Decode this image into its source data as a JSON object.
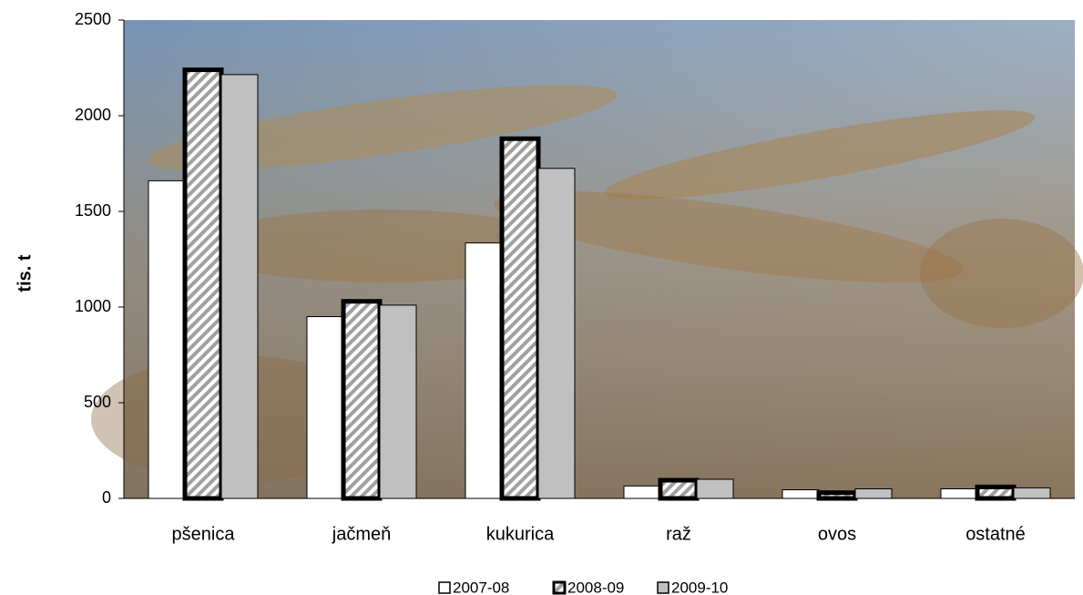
{
  "chart_data": {
    "type": "bar",
    "y_label": "tis. t",
    "categories": [
      "pšenica",
      "jačmeň",
      "kukurica",
      "raž",
      "ovos",
      "ostatné"
    ],
    "series": [
      {
        "name": "2007-08",
        "color": "#ffffff",
        "values": [
          1660,
          950,
          1335,
          65,
          45,
          50
        ]
      },
      {
        "name": "2008-09",
        "color": "#c0c0c0",
        "hatch": true,
        "values": [
          2240,
          1030,
          1880,
          95,
          30,
          60
        ]
      },
      {
        "name": "2009-10",
        "color": "#c0c0c0",
        "values": [
          2215,
          1010,
          1725,
          100,
          50,
          55
        ]
      }
    ],
    "ylim": [
      0,
      2500
    ],
    "yticks": [
      0,
      500,
      1000,
      1500,
      2000,
      2500
    ],
    "grid": false,
    "legend": "bottom"
  }
}
